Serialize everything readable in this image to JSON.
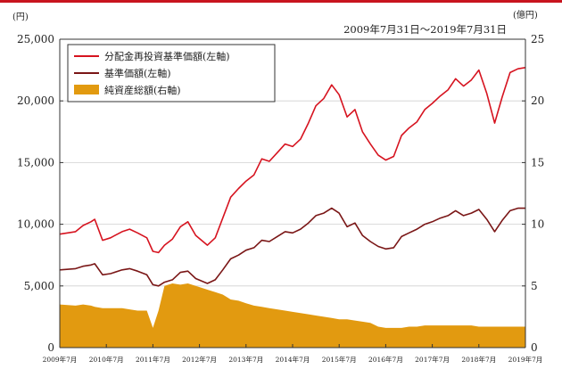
{
  "colors": {
    "reinvested": "#d6131f",
    "nav": "#7a1616",
    "assets": "#e29a10",
    "axis": "#333333"
  },
  "chart_data": {
    "type": "line",
    "period_label": "2009年7月31日～2019年7月31日",
    "left_unit": "(円)",
    "right_unit": "(億円)",
    "left_ylim": [
      0,
      25000
    ],
    "right_ylim": [
      0,
      25
    ],
    "left_ticks": [
      "25,000",
      "20,000",
      "15,000",
      "10,000",
      "5,000",
      "0"
    ],
    "right_ticks": [
      "25",
      "20",
      "15",
      "10",
      "5",
      "0"
    ],
    "x_labels": [
      "2009年7月",
      "2010年7月",
      "2011年7月",
      "2012年7月",
      "2013年7月",
      "2014年7月",
      "2015年7月",
      "2016年7月",
      "2017年7月",
      "2018年7月",
      "2019年7月"
    ],
    "x": [
      2009.58,
      2009.92,
      2010.08,
      2010.25,
      2010.33,
      2010.5,
      2010.67,
      2010.92,
      2011.08,
      2011.25,
      2011.45,
      2011.58,
      2011.7,
      2011.83,
      2012.0,
      2012.17,
      2012.33,
      2012.5,
      2012.75,
      2012.92,
      2013.08,
      2013.25,
      2013.42,
      2013.58,
      2013.75,
      2013.92,
      2014.08,
      2014.25,
      2014.42,
      2014.58,
      2014.75,
      2014.92,
      2015.08,
      2015.25,
      2015.42,
      2015.58,
      2015.75,
      2015.92,
      2016.08,
      2016.25,
      2016.42,
      2016.58,
      2016.75,
      2016.92,
      2017.08,
      2017.25,
      2017.42,
      2017.58,
      2017.75,
      2017.92,
      2018.08,
      2018.25,
      2018.42,
      2018.58,
      2018.75,
      2018.92,
      2019.08,
      2019.25,
      2019.42,
      2019.58
    ],
    "series": [
      {
        "name": "分配金再投資基準価額(左軸)",
        "values": [
          9200,
          9400,
          9900,
          10200,
          10400,
          8700,
          8900,
          9400,
          9600,
          9300,
          8900,
          7800,
          7700,
          8300,
          8800,
          9800,
          10200,
          9100,
          8300,
          8900,
          10500,
          12200,
          12900,
          13500,
          14000,
          15300,
          15100,
          15800,
          16500,
          16300,
          16900,
          18200,
          19600,
          20200,
          21300,
          20500,
          18700,
          19300,
          17500,
          16500,
          15600,
          15200,
          15500,
          17200,
          17800,
          18300,
          19300,
          19800,
          20400,
          20900,
          21800,
          21200,
          21700,
          22500,
          20600,
          18200,
          20300,
          22300,
          22600,
          22700
        ]
      },
      {
        "name": "基準価額(左軸)",
        "values": [
          6300,
          6400,
          6600,
          6700,
          6800,
          5900,
          6000,
          6300,
          6400,
          6200,
          5900,
          5100,
          5000,
          5300,
          5500,
          6100,
          6200,
          5600,
          5200,
          5500,
          6300,
          7200,
          7500,
          7900,
          8100,
          8700,
          8600,
          9000,
          9400,
          9300,
          9600,
          10100,
          10700,
          10900,
          11300,
          10900,
          9800,
          10100,
          9100,
          8600,
          8200,
          8000,
          8100,
          9000,
          9300,
          9600,
          10000,
          10200,
          10500,
          10700,
          11100,
          10700,
          10900,
          11200,
          10400,
          9400,
          10300,
          11100,
          11300,
          11300
        ]
      },
      {
        "name": "純資産総額(右軸)",
        "values": [
          3.5,
          3.4,
          3.5,
          3.4,
          3.3,
          3.2,
          3.2,
          3.2,
          3.1,
          3.0,
          3.0,
          1.6,
          3.0,
          5.0,
          5.2,
          5.1,
          5.2,
          5.0,
          4.7,
          4.5,
          4.3,
          3.9,
          3.8,
          3.6,
          3.4,
          3.3,
          3.2,
          3.1,
          3.0,
          2.9,
          2.8,
          2.7,
          2.6,
          2.5,
          2.4,
          2.3,
          2.3,
          2.2,
          2.1,
          2.0,
          1.7,
          1.6,
          1.6,
          1.6,
          1.7,
          1.7,
          1.8,
          1.8,
          1.8,
          1.8,
          1.8,
          1.8,
          1.8,
          1.7,
          1.7,
          1.7,
          1.7,
          1.7,
          1.7,
          1.7
        ]
      }
    ]
  }
}
